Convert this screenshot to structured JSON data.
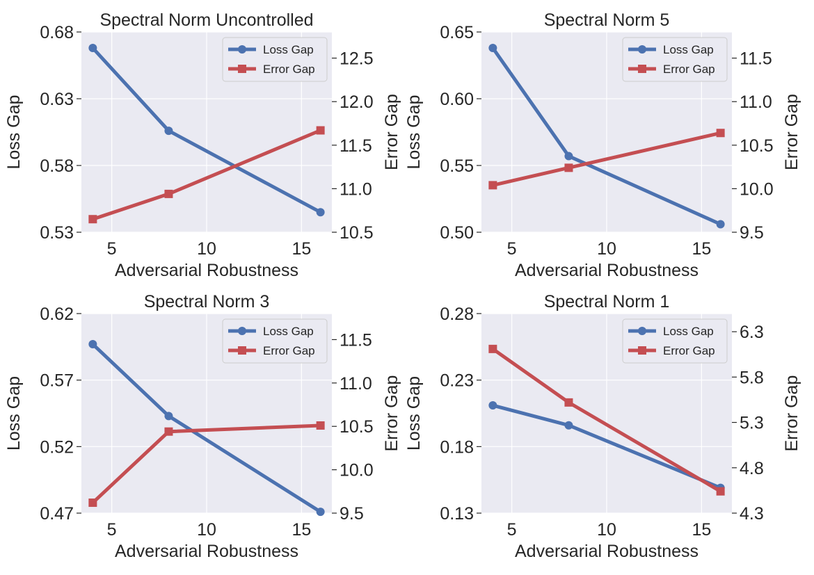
{
  "chart_data": [
    {
      "type": "line",
      "title": "Spectral Norm Uncontrolled",
      "xlabel": "Adversarial Robustness",
      "ylabel": "Loss Gap",
      "y2label": "Error Gap",
      "x": [
        4,
        8,
        16
      ],
      "xlim": [
        3.4,
        16.6
      ],
      "xticks": [
        5,
        10,
        15
      ],
      "xtick_labels": [
        "5",
        "10",
        "15"
      ],
      "ylim": [
        0.53,
        0.68
      ],
      "yticks": [
        0.53,
        0.58,
        0.63,
        0.68
      ],
      "ytick_labels": [
        "0.53",
        "0.58",
        "0.63",
        "0.68"
      ],
      "y2lim": [
        10.5,
        12.8
      ],
      "y2ticks": [
        10.5,
        11.0,
        11.5,
        12.0,
        12.5
      ],
      "y2tick_labels": [
        "10.5",
        "11.0",
        "11.5",
        "12.0",
        "12.5"
      ],
      "legend_position": "top-right",
      "series": [
        {
          "name": "Loss Gap",
          "axis": "left",
          "marker": "circle",
          "color": "#4c72b0",
          "values": [
            0.668,
            0.606,
            0.545
          ]
        },
        {
          "name": "Error Gap",
          "axis": "right",
          "marker": "square",
          "color": "#c44e52",
          "values": [
            10.65,
            10.94,
            11.67
          ]
        }
      ]
    },
    {
      "type": "line",
      "title": "Spectral Norm 5",
      "xlabel": "Adversarial Robustness",
      "ylabel": "Loss Gap",
      "y2label": "Error Gap",
      "x": [
        4,
        8,
        16
      ],
      "xlim": [
        3.4,
        16.6
      ],
      "xticks": [
        5,
        10,
        15
      ],
      "xtick_labels": [
        "5",
        "10",
        "15"
      ],
      "ylim": [
        0.5,
        0.65
      ],
      "yticks": [
        0.5,
        0.55,
        0.6,
        0.65
      ],
      "ytick_labels": [
        "0.50",
        "0.55",
        "0.60",
        "0.65"
      ],
      "y2lim": [
        9.5,
        11.8
      ],
      "y2ticks": [
        9.5,
        10.0,
        10.5,
        11.0,
        11.5
      ],
      "y2tick_labels": [
        "9.5",
        "10.0",
        "10.5",
        "11.0",
        "11.5"
      ],
      "legend_position": "top-right",
      "series": [
        {
          "name": "Loss Gap",
          "axis": "left",
          "marker": "circle",
          "color": "#4c72b0",
          "values": [
            0.638,
            0.557,
            0.506
          ]
        },
        {
          "name": "Error Gap",
          "axis": "right",
          "marker": "square",
          "color": "#c44e52",
          "values": [
            10.04,
            10.24,
            10.64
          ]
        }
      ]
    },
    {
      "type": "line",
      "title": "Spectral Norm 3",
      "xlabel": "Adversarial Robustness",
      "ylabel": "Loss Gap",
      "y2label": "Error Gap",
      "x": [
        4,
        8,
        16
      ],
      "xlim": [
        3.4,
        16.6
      ],
      "xticks": [
        5,
        10,
        15
      ],
      "xtick_labels": [
        "5",
        "10",
        "15"
      ],
      "ylim": [
        0.47,
        0.62
      ],
      "yticks": [
        0.47,
        0.52,
        0.57,
        0.62
      ],
      "ytick_labels": [
        "0.47",
        "0.52",
        "0.57",
        "0.62"
      ],
      "y2lim": [
        9.5,
        11.8
      ],
      "y2ticks": [
        9.5,
        10.0,
        10.5,
        11.0,
        11.5
      ],
      "y2tick_labels": [
        "9.5",
        "10.0",
        "10.5",
        "11.0",
        "11.5"
      ],
      "legend_position": "top-right",
      "series": [
        {
          "name": "Loss Gap",
          "axis": "left",
          "marker": "circle",
          "color": "#4c72b0",
          "values": [
            0.597,
            0.543,
            0.471
          ]
        },
        {
          "name": "Error Gap",
          "axis": "right",
          "marker": "square",
          "color": "#c44e52",
          "values": [
            9.62,
            10.44,
            10.51
          ]
        }
      ]
    },
    {
      "type": "line",
      "title": "Spectral Norm 1",
      "xlabel": "Adversarial Robustness",
      "ylabel": "Loss Gap",
      "y2label": "Error Gap",
      "x": [
        4,
        8,
        16
      ],
      "xlim": [
        3.4,
        16.6
      ],
      "xticks": [
        5,
        10,
        15
      ],
      "xtick_labels": [
        "5",
        "10",
        "15"
      ],
      "ylim": [
        0.13,
        0.28
      ],
      "yticks": [
        0.13,
        0.18,
        0.23,
        0.28
      ],
      "ytick_labels": [
        "0.13",
        "0.18",
        "0.23",
        "0.28"
      ],
      "y2lim": [
        4.3,
        6.5
      ],
      "y2ticks": [
        4.3,
        4.8,
        5.3,
        5.8,
        6.3
      ],
      "y2tick_labels": [
        "4.3",
        "4.8",
        "5.3",
        "5.8",
        "6.3"
      ],
      "legend_position": "top-right",
      "series": [
        {
          "name": "Loss Gap",
          "axis": "left",
          "marker": "circle",
          "color": "#4c72b0",
          "values": [
            0.211,
            0.196,
            0.149
          ]
        },
        {
          "name": "Error Gap",
          "axis": "right",
          "marker": "square",
          "color": "#c44e52",
          "values": [
            6.11,
            5.52,
            4.54
          ]
        }
      ]
    }
  ]
}
